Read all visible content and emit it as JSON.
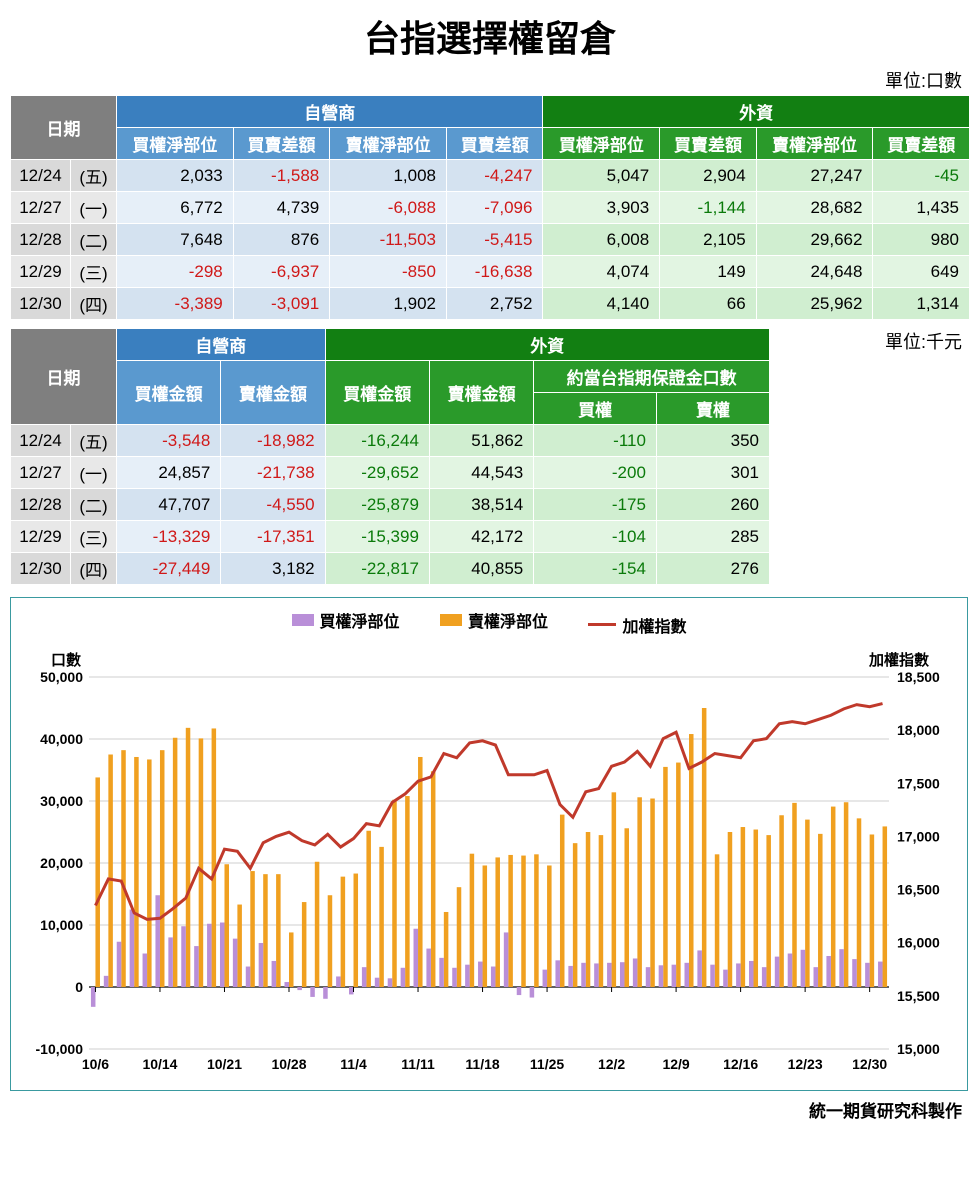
{
  "title": "台指選擇權留倉",
  "unit1": "單位:口數",
  "unit2": "單位:千元",
  "footer": "統一期貨研究科製作",
  "headers": {
    "date": "日期",
    "dealer": "自營商",
    "foreign": "外資",
    "callNet": "買權淨部位",
    "diff": "買賣差額",
    "putNet": "賣權淨部位",
    "callAmt": "買權金額",
    "putAmt": "賣權金額",
    "margin": "約當台指期保證金口數",
    "call": "買權",
    "put": "賣權"
  },
  "table1": [
    {
      "date": "12/24",
      "day": "(五)",
      "d": [
        2033,
        -1588,
        1008,
        -4247
      ],
      "f": [
        5047,
        2904,
        27247,
        -45
      ]
    },
    {
      "date": "12/27",
      "day": "(一)",
      "d": [
        6772,
        4739,
        -6088,
        -7096
      ],
      "f": [
        3903,
        -1144,
        28682,
        1435
      ]
    },
    {
      "date": "12/28",
      "day": "(二)",
      "d": [
        7648,
        876,
        -11503,
        -5415
      ],
      "f": [
        6008,
        2105,
        29662,
        980
      ]
    },
    {
      "date": "12/29",
      "day": "(三)",
      "d": [
        -298,
        -6937,
        -850,
        -16638
      ],
      "f": [
        4074,
        149,
        24648,
        649
      ]
    },
    {
      "date": "12/30",
      "day": "(四)",
      "d": [
        -3389,
        -3091,
        1902,
        2752
      ],
      "f": [
        4140,
        66,
        25962,
        1314
      ]
    }
  ],
  "table2": [
    {
      "date": "12/24",
      "day": "(五)",
      "d": [
        -3548,
        -18982
      ],
      "f": [
        -16244,
        51862,
        -110,
        350
      ]
    },
    {
      "date": "12/27",
      "day": "(一)",
      "d": [
        24857,
        -21738
      ],
      "f": [
        -29652,
        44543,
        -200,
        301
      ]
    },
    {
      "date": "12/28",
      "day": "(二)",
      "d": [
        47707,
        -4550
      ],
      "f": [
        -25879,
        38514,
        -175,
        260
      ]
    },
    {
      "date": "12/29",
      "day": "(三)",
      "d": [
        -13329,
        -17351
      ],
      "f": [
        -15399,
        42172,
        -104,
        285
      ]
    },
    {
      "date": "12/30",
      "day": "(四)",
      "d": [
        -27449,
        3182
      ],
      "f": [
        -22817,
        40855,
        -154,
        276
      ]
    }
  ],
  "chart": {
    "legend": {
      "s1": "買權淨部位",
      "s2": "賣權淨部位",
      "s3": "加權指數"
    },
    "colors": {
      "s1": "#b98fd8",
      "s2": "#f0a020",
      "s3": "#c0392b",
      "border": "#3a9aa0",
      "grid": "#bfbfbf"
    },
    "yLeft": {
      "label": "口數",
      "min": -10000,
      "max": 50000,
      "step": 10000
    },
    "yRight": {
      "label": "加權指數",
      "min": 15000,
      "max": 18500,
      "step": 500
    },
    "xLabels": [
      "10/6",
      "10/14",
      "10/21",
      "10/28",
      "11/4",
      "11/11",
      "11/18",
      "11/25",
      "12/2",
      "12/9",
      "12/16",
      "12/23",
      "12/30"
    ],
    "series": {
      "call": [
        -3200,
        1800,
        7300,
        12500,
        5400,
        14800,
        8000,
        9800,
        6600,
        10200,
        10400,
        7800,
        3300,
        7100,
        4200,
        800,
        -500,
        -1600,
        -1900,
        1700,
        -1200,
        3200,
        1500,
        1400,
        3100,
        9400,
        6200,
        4700,
        3100,
        3600,
        4100,
        3300,
        8800,
        -1300,
        -1700,
        2800,
        4300,
        3400,
        3900,
        3800,
        3900,
        4000,
        4600,
        3200,
        3500,
        3600,
        3900,
        5900,
        3600,
        2800,
        3800,
        4200,
        3200,
        4900,
        5400,
        6000,
        3200,
        5000,
        6100,
        4500,
        3900,
        4100
      ],
      "put": [
        33800,
        37500,
        38200,
        37100,
        36700,
        38200,
        40200,
        41800,
        40100,
        41700,
        19800,
        13300,
        18700,
        18200,
        18200,
        8800,
        13700,
        20200,
        14800,
        17800,
        18300,
        25200,
        22600,
        30200,
        30800,
        37100,
        34800,
        12100,
        16100,
        21500,
        19600,
        20900,
        21300,
        21200,
        21400,
        19600,
        27800,
        23200,
        25000,
        24500,
        31400,
        25600,
        30600,
        30400,
        35500,
        36200,
        40800,
        45000,
        21400,
        25000,
        25800,
        25400,
        24500,
        27700,
        29700,
        27000,
        24700,
        29100,
        29800,
        27200,
        24600,
        25900
      ],
      "index": [
        16350,
        16600,
        16580,
        16280,
        16220,
        16230,
        16320,
        16420,
        16700,
        16600,
        16880,
        16860,
        16700,
        16940,
        17000,
        17040,
        16960,
        16920,
        17020,
        16900,
        16980,
        17120,
        17100,
        17320,
        17400,
        17520,
        17560,
        17780,
        17740,
        17880,
        17900,
        17860,
        17580,
        17580,
        17580,
        17620,
        17300,
        17180,
        17420,
        17450,
        17660,
        17700,
        17800,
        17660,
        17920,
        17980,
        17640,
        17700,
        17780,
        17760,
        17740,
        17900,
        17920,
        18060,
        18080,
        18060,
        18100,
        18140,
        18200,
        18240,
        18220,
        18250
      ]
    }
  }
}
